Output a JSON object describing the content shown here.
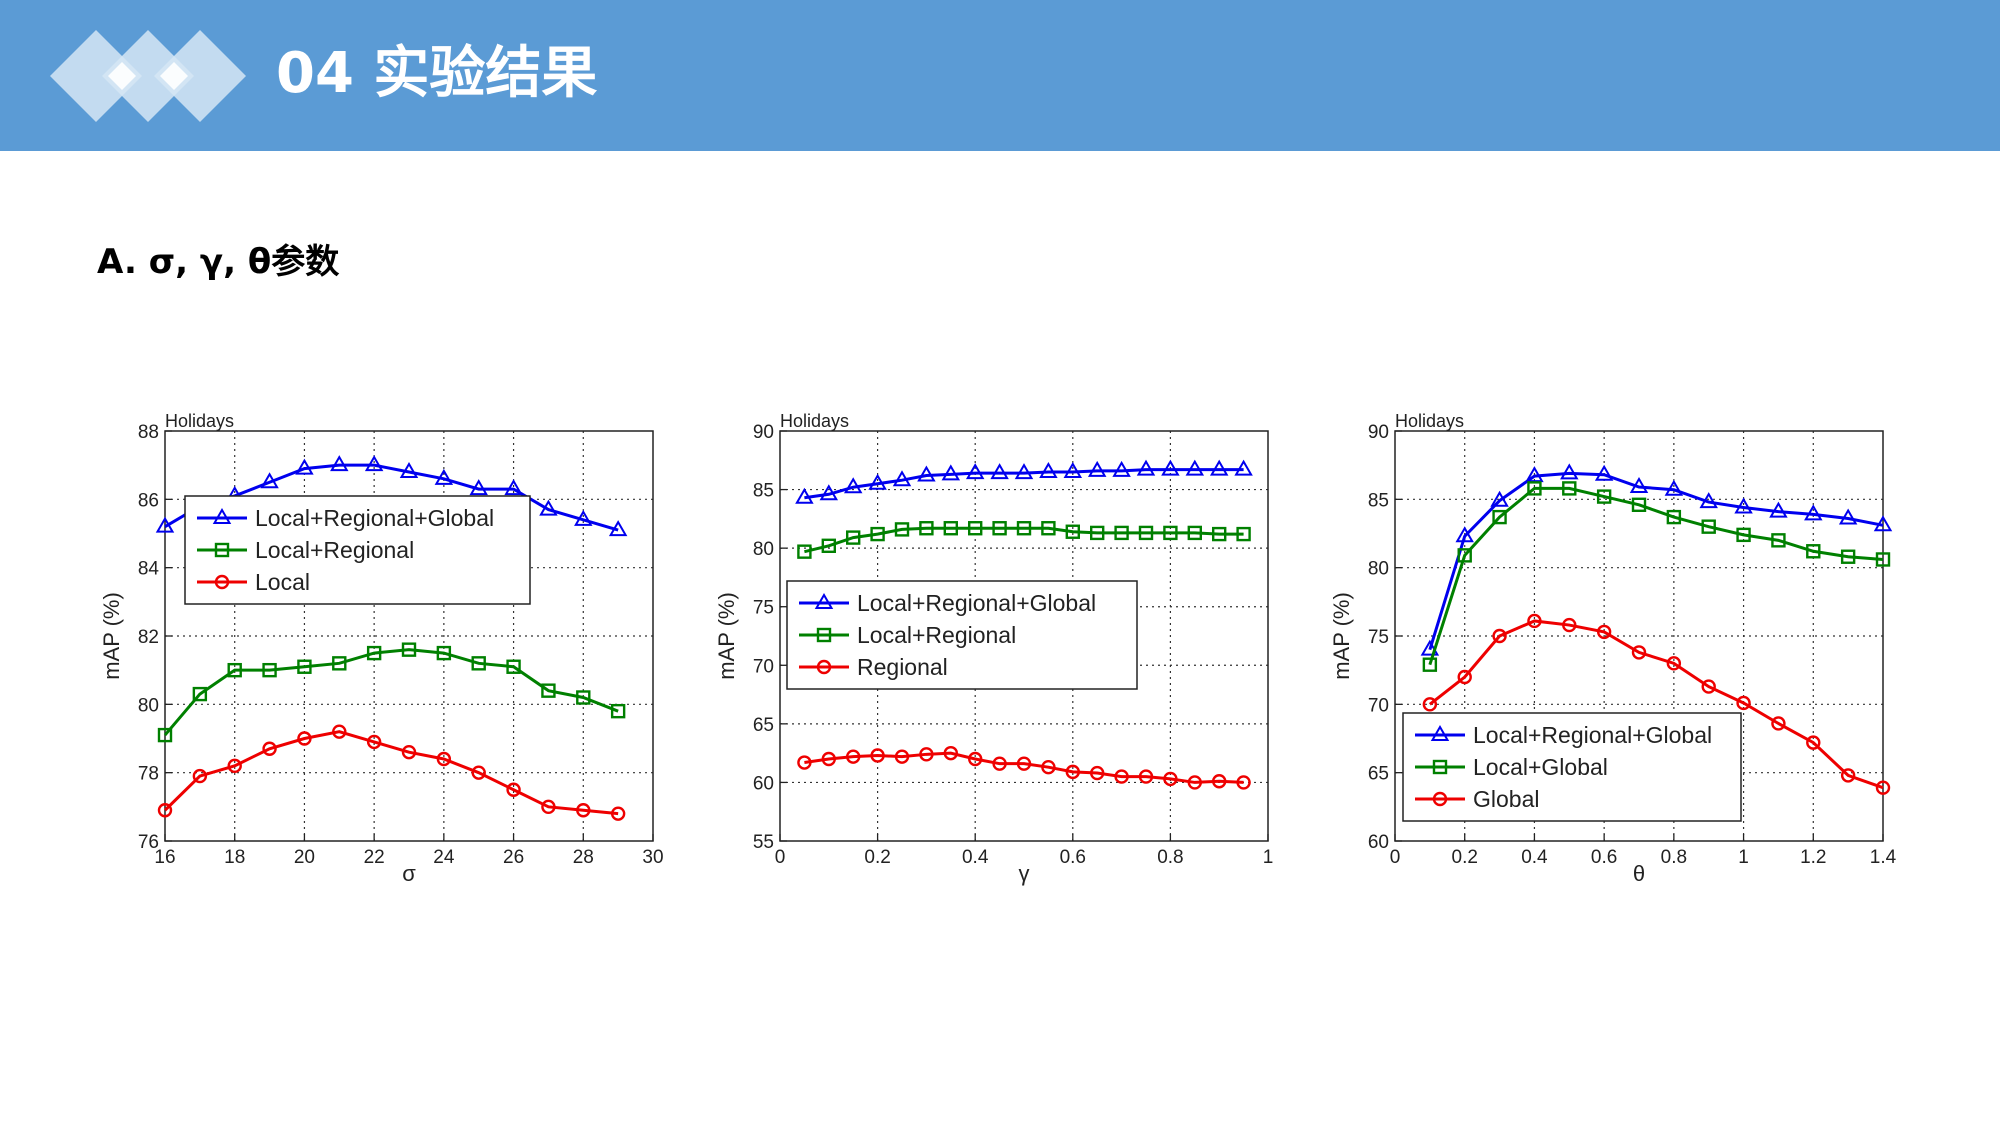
{
  "header": {
    "title": "04 实验结果",
    "background_color": "#5b9bd5",
    "logo_icon": "three-diamonds-icon"
  },
  "section": {
    "heading": "A. σ, γ, θ参数"
  },
  "colors": {
    "blue": "#0000ee",
    "green": "#008000",
    "red": "#ee0000"
  },
  "chart_data": [
    {
      "type": "line",
      "dataset_label": "Holidays",
      "xlabel": "σ",
      "ylabel": "mAP (%)",
      "xlim": [
        16,
        30
      ],
      "ylim": [
        76,
        88
      ],
      "xticks": [
        16,
        18,
        20,
        22,
        24,
        26,
        28,
        30
      ],
      "yticks": [
        76,
        78,
        80,
        82,
        84,
        86,
        88
      ],
      "grid": true,
      "legend_position": "center-left",
      "x": [
        16,
        17,
        18,
        19,
        20,
        21,
        22,
        23,
        24,
        25,
        26,
        27,
        28,
        29
      ],
      "series": [
        {
          "name": "Local+Regional+Global",
          "color": "blue",
          "marker": "triangle",
          "values": [
            85.2,
            85.8,
            86.1,
            86.5,
            86.9,
            87.0,
            87.0,
            86.8,
            86.6,
            86.3,
            86.3,
            85.7,
            85.4,
            85.1
          ]
        },
        {
          "name": "Local+Regional",
          "color": "green",
          "marker": "square",
          "values": [
            79.1,
            80.3,
            81.0,
            81.0,
            81.1,
            81.2,
            81.5,
            81.6,
            81.5,
            81.2,
            81.1,
            80.4,
            80.2,
            79.8
          ]
        },
        {
          "name": "Local",
          "color": "red",
          "marker": "circle",
          "values": [
            76.9,
            77.9,
            78.2,
            78.7,
            79.0,
            79.2,
            78.9,
            78.6,
            78.4,
            78.0,
            77.5,
            77.0,
            76.9,
            76.8
          ]
        }
      ]
    },
    {
      "type": "line",
      "dataset_label": "Holidays",
      "xlabel": "γ",
      "ylabel": "mAP (%)",
      "xlim": [
        0,
        1
      ],
      "ylim": [
        55,
        90
      ],
      "xticks": [
        0,
        0.2,
        0.4,
        0.6,
        0.8,
        1
      ],
      "yticks": [
        55,
        60,
        65,
        70,
        75,
        80,
        85,
        90
      ],
      "grid": true,
      "legend_position": "center",
      "x": [
        0.05,
        0.1,
        0.15,
        0.2,
        0.25,
        0.3,
        0.35,
        0.4,
        0.45,
        0.5,
        0.55,
        0.6,
        0.65,
        0.7,
        0.75,
        0.8,
        0.85,
        0.9,
        0.95
      ],
      "series": [
        {
          "name": "Local+Regional+Global",
          "color": "blue",
          "marker": "triangle",
          "values": [
            84.3,
            84.6,
            85.2,
            85.5,
            85.8,
            86.2,
            86.3,
            86.4,
            86.4,
            86.4,
            86.5,
            86.5,
            86.6,
            86.6,
            86.7,
            86.7,
            86.7,
            86.7,
            86.7
          ]
        },
        {
          "name": "Local+Regional",
          "color": "green",
          "marker": "square",
          "values": [
            79.7,
            80.2,
            80.9,
            81.2,
            81.6,
            81.7,
            81.7,
            81.7,
            81.7,
            81.7,
            81.7,
            81.4,
            81.3,
            81.3,
            81.3,
            81.3,
            81.3,
            81.2,
            81.2
          ]
        },
        {
          "name": "Regional",
          "color": "red",
          "marker": "circle",
          "values": [
            61.7,
            62.0,
            62.2,
            62.3,
            62.2,
            62.4,
            62.5,
            62.0,
            61.6,
            61.6,
            61.3,
            60.9,
            60.8,
            60.5,
            60.5,
            60.3,
            60.0,
            60.1,
            60.0
          ]
        }
      ]
    },
    {
      "type": "line",
      "dataset_label": "Holidays",
      "xlabel": "θ",
      "ylabel": "mAP (%)",
      "xlim": [
        0,
        1.4
      ],
      "ylim": [
        60,
        90
      ],
      "xticks": [
        0,
        0.2,
        0.4,
        0.6,
        0.8,
        1,
        1.2,
        1.4
      ],
      "yticks": [
        60,
        65,
        70,
        75,
        80,
        85,
        90
      ],
      "grid": true,
      "legend_position": "bottom-left",
      "x": [
        0.1,
        0.2,
        0.3,
        0.4,
        0.5,
        0.6,
        0.7,
        0.8,
        0.9,
        1.0,
        1.1,
        1.2,
        1.3,
        1.4
      ],
      "series": [
        {
          "name": "Local+Regional+Global",
          "color": "blue",
          "marker": "triangle",
          "values": [
            74.0,
            82.3,
            84.9,
            86.7,
            86.9,
            86.8,
            85.9,
            85.7,
            84.8,
            84.4,
            84.1,
            83.9,
            83.6,
            83.1
          ]
        },
        {
          "name": "Local+Global",
          "color": "green",
          "marker": "square",
          "values": [
            72.9,
            80.9,
            83.7,
            85.8,
            85.8,
            85.2,
            84.6,
            83.7,
            83.0,
            82.4,
            82.0,
            81.2,
            80.8,
            80.6
          ]
        },
        {
          "name": "Global",
          "color": "red",
          "marker": "circle",
          "values": [
            70.0,
            72.0,
            75.0,
            76.1,
            75.8,
            75.3,
            73.8,
            73.0,
            71.3,
            70.1,
            68.6,
            67.2,
            64.8,
            63.9
          ]
        }
      ]
    }
  ]
}
